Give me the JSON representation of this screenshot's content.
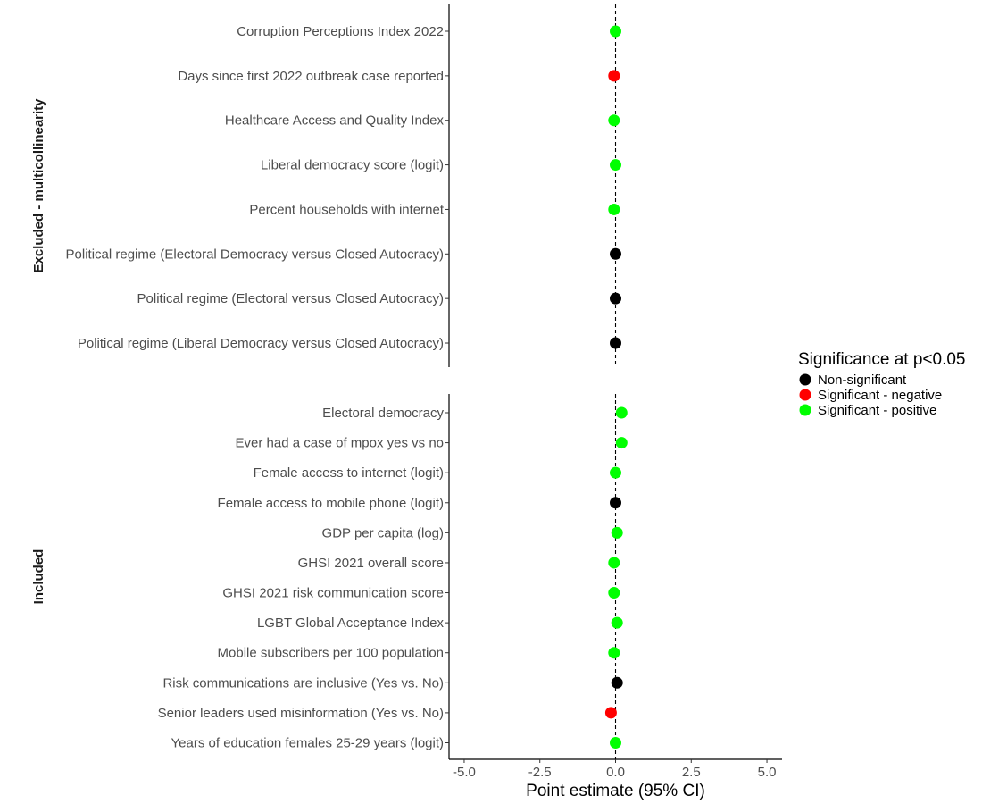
{
  "chart_data": {
    "type": "scatter",
    "xlabel": "Point estimate (95% CI)",
    "xlim": [
      -5.5,
      5.5
    ],
    "xticks": [
      -5.0,
      -2.5,
      0.0,
      2.5,
      5.0
    ],
    "xtick_labels": [
      "-5.0",
      "-2.5",
      "0.0",
      "2.5",
      "5.0"
    ],
    "reference_line": 0,
    "grid": false,
    "legend": {
      "title": "Significance at p<0.05",
      "position": "right",
      "entries": [
        {
          "label": "Non-significant",
          "color": "#000000"
        },
        {
          "label": "Significant - negative",
          "color": "#ff0000"
        },
        {
          "label": "Significant - positive",
          "color": "#00ff00"
        }
      ]
    },
    "panels": [
      {
        "strip": "Excluded - multicollinearity",
        "points": [
          {
            "label": "Corruption Perceptions Index 2022",
            "x": 0.0,
            "sig": "Significant - positive"
          },
          {
            "label": "Days since first 2022 outbreak case reported",
            "x": -0.05,
            "sig": "Significant - negative"
          },
          {
            "label": "Healthcare Access and Quality Index",
            "x": -0.05,
            "sig": "Significant - positive"
          },
          {
            "label": "Liberal democracy score (logit)",
            "x": 0.0,
            "sig": "Significant - positive"
          },
          {
            "label": "Percent households with internet",
            "x": -0.05,
            "sig": "Significant - positive"
          },
          {
            "label": "Political regime (Electoral Democracy versus Closed Autocracy)",
            "x": 0.0,
            "sig": "Non-significant"
          },
          {
            "label": "Political regime (Electoral versus Closed Autocracy)",
            "x": 0.0,
            "sig": "Non-significant"
          },
          {
            "label": "Political regime (Liberal Democracy versus Closed Autocracy)",
            "x": 0.0,
            "sig": "Non-significant"
          }
        ]
      },
      {
        "strip": "Included",
        "points": [
          {
            "label": "Electoral democracy",
            "x": 0.2,
            "sig": "Significant - positive"
          },
          {
            "label": "Ever had a case of mpox yes vs no",
            "x": 0.2,
            "sig": "Significant - positive"
          },
          {
            "label": "Female access to internet (logit)",
            "x": 0.0,
            "sig": "Significant - positive"
          },
          {
            "label": "Female access to mobile phone (logit)",
            "x": 0.0,
            "sig": "Non-significant"
          },
          {
            "label": "GDP per capita (log)",
            "x": 0.05,
            "sig": "Significant - positive"
          },
          {
            "label": "GHSI 2021 overall score",
            "x": -0.05,
            "sig": "Significant - positive"
          },
          {
            "label": "GHSI 2021 risk communication score",
            "x": -0.05,
            "sig": "Significant - positive"
          },
          {
            "label": "LGBT Global Acceptance Index",
            "x": 0.05,
            "sig": "Significant - positive"
          },
          {
            "label": "Mobile subscribers per 100 population",
            "x": -0.05,
            "sig": "Significant - positive"
          },
          {
            "label": "Risk communications are inclusive (Yes vs. No)",
            "x": 0.05,
            "sig": "Non-significant"
          },
          {
            "label": "Senior leaders used misinformation (Yes vs. No)",
            "x": -0.15,
            "sig": "Significant - negative"
          },
          {
            "label": "Years of education females 25-29 years (logit)",
            "x": 0.0,
            "sig": "Significant - positive"
          }
        ]
      }
    ]
  }
}
